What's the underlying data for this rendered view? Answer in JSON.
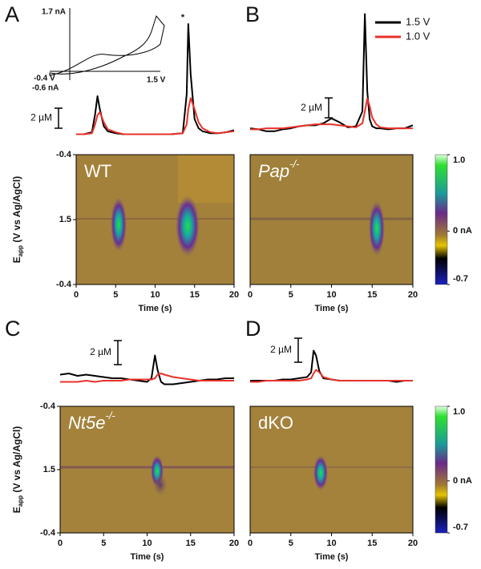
{
  "chart_data": [
    {
      "type": "line",
      "panel_label": "A",
      "annotation": "*",
      "genotype": {
        "text": "WT"
      },
      "inset": {
        "ymax_label": "1.7 nA",
        "xmin_label": "-0.4 V",
        "ymin_label": "-0.6 nA",
        "xmax_label": "1.5 V"
      },
      "x": [
        0,
        1,
        2,
        2.4,
        2.7,
        3.0,
        3.5,
        4,
        5,
        6,
        8,
        10,
        12,
        13.5,
        14,
        14.2,
        14.5,
        15,
        15.5,
        16,
        17,
        18,
        19,
        20
      ],
      "series": [
        {
          "color": "#000000",
          "values": [
            0,
            0,
            0.2,
            2,
            3.8,
            2.5,
            0.8,
            0.3,
            0.1,
            0,
            0,
            0,
            0,
            0.1,
            4,
            11,
            6,
            1.5,
            0.6,
            0.3,
            0.1,
            0.1,
            0.2,
            0.4
          ]
        },
        {
          "color": "#e8312a",
          "values": [
            0,
            0,
            0.1,
            1,
            1.9,
            2.2,
            1.2,
            0.5,
            0.2,
            0,
            0,
            0,
            0,
            0.1,
            1,
            2.5,
            3.6,
            2.5,
            1.2,
            0.6,
            0.2,
            0.1,
            0.2,
            0.3
          ]
        }
      ],
      "ylim": [
        -1,
        11
      ],
      "scalebar": {
        "value": 2,
        "label": "2 µM"
      },
      "xlim": [
        0,
        20
      ],
      "xticks": [
        0,
        5,
        10,
        15,
        20
      ],
      "xlabel": "Time (s)",
      "yticks": [
        -0.4,
        1.5,
        -0.4
      ],
      "ylabel": {
        "symbol": "E",
        "subscript": "app",
        "text": " (V vs Ag/AgCl)"
      }
    },
    {
      "type": "line",
      "panel_label": "B",
      "genotype": {
        "text": "Pap",
        "superscript": "-/-"
      },
      "x": [
        0,
        1,
        2,
        3,
        4,
        5,
        6,
        7,
        8,
        9,
        10,
        11,
        12,
        13,
        13.8,
        14.1,
        14.4,
        14.7,
        15,
        15.5,
        16,
        17,
        18,
        19,
        20
      ],
      "series": [
        {
          "name": "1.5 V",
          "color": "#000000",
          "values": [
            0.3,
            0.2,
            0,
            0,
            0.2,
            0.3,
            0.5,
            0.6,
            0.6,
            0.8,
            1.3,
            0.9,
            0.4,
            0.5,
            2,
            11.8,
            4,
            1.2,
            0.5,
            0.3,
            0.3,
            0.2,
            0.3,
            0.3,
            0.6
          ]
        },
        {
          "name": "1.0 V",
          "color": "#e8312a",
          "values": [
            0.2,
            0.2,
            0.3,
            0.3,
            0.3,
            0.4,
            0.5,
            0.6,
            0.7,
            0.7,
            0.7,
            0.6,
            0.5,
            0.4,
            0.8,
            2,
            3.3,
            2.5,
            1.4,
            0.7,
            0.4,
            0.3,
            0.3,
            0.3,
            0.3
          ]
        }
      ],
      "ylim": [
        -0.5,
        12
      ],
      "scalebar": {
        "value": 2,
        "label": "2 µM"
      },
      "xlim": [
        0,
        20
      ],
      "xticks": [
        0,
        5,
        10,
        15,
        20
      ],
      "xlabel": "Time (s)",
      "colorbar": {
        "clim": [
          -0.7,
          1.0
        ],
        "ticks": [
          {
            "value": 1.0,
            "label": "1.0"
          },
          {
            "value": 0,
            "label": "0 nA"
          },
          -0.7
        ]
      }
    },
    {
      "type": "line",
      "panel_label": "C",
      "genotype": {
        "text": "Nt5e",
        "superscript": "-/-"
      },
      "x": [
        0,
        1,
        2,
        3,
        4,
        5,
        6,
        7,
        8,
        9,
        10,
        10.5,
        10.9,
        11.2,
        11.6,
        12,
        13,
        14,
        15,
        16,
        17,
        18,
        19,
        20
      ],
      "series": [
        {
          "color": "#000000",
          "values": [
            0,
            0.1,
            -0.1,
            0,
            -0.1,
            -0.2,
            -0.3,
            -0.3,
            -0.4,
            -0.5,
            -0.6,
            -0.3,
            1.6,
            0.4,
            -0.6,
            -0.8,
            -0.8,
            -0.7,
            -0.6,
            -0.5,
            -0.4,
            -0.4,
            -0.3,
            -0.3
          ]
        },
        {
          "color": "#e8312a",
          "values": [
            -0.6,
            -0.6,
            -0.6,
            -0.5,
            -0.6,
            -0.5,
            -0.5,
            -0.5,
            -0.4,
            -0.4,
            -0.4,
            -0.4,
            -0.3,
            0,
            0.1,
            0,
            -0.2,
            -0.3,
            -0.4,
            -0.5,
            -0.5,
            -0.5,
            -0.5,
            -0.5
          ]
        }
      ],
      "ylim": [
        -1.5,
        3.5
      ],
      "scalebar": {
        "value": 2,
        "label": "2 µM"
      },
      "xlim": [
        0,
        20
      ],
      "xticks": [
        0,
        5,
        10,
        15,
        20
      ],
      "xlabel": "Time (s)",
      "yticks": [
        -0.4,
        1.5,
        -0.4
      ],
      "ylabel": {
        "symbol": "E",
        "subscript": "app",
        "text": " (V vs Ag/AgCl)"
      }
    },
    {
      "type": "line",
      "panel_label": "D",
      "genotype": {
        "text": "dKO"
      },
      "x": [
        0,
        1,
        2,
        3,
        4,
        5,
        6,
        7,
        7.5,
        7.8,
        8.1,
        8.5,
        9,
        10,
        11,
        12,
        13,
        14,
        15,
        16,
        17,
        18,
        19,
        20
      ],
      "series": [
        {
          "color": "#000000",
          "values": [
            -0.5,
            -0.5,
            -0.5,
            -0.5,
            -0.4,
            -0.4,
            -0.3,
            -0.2,
            0.2,
            2,
            1.6,
            0.3,
            -0.3,
            -0.4,
            -0.5,
            -0.5,
            -0.5,
            -0.5,
            -0.5,
            -0.5,
            -0.5,
            -0.6,
            -0.5,
            -0.5
          ]
        },
        {
          "color": "#e8312a",
          "values": [
            -0.6,
            -0.6,
            -0.5,
            -0.5,
            -0.5,
            -0.5,
            -0.5,
            -0.4,
            -0.3,
            0.1,
            0.4,
            0.2,
            -0.2,
            -0.4,
            -0.5,
            -0.5,
            -0.5,
            -0.5,
            -0.5,
            -0.5,
            -0.5,
            -0.5,
            -0.5,
            -0.5
          ]
        }
      ],
      "ylim": [
        -1.5,
        3.5
      ],
      "scalebar": {
        "value": 2,
        "label": "2 µM"
      },
      "xlim": [
        0,
        20
      ],
      "xticks": [
        0,
        5,
        10,
        15,
        20
      ],
      "xlabel": "Time (s)",
      "colorbar": {
        "clim": [
          -0.7,
          1.0
        ],
        "ticks": [
          {
            "value": 1.0,
            "label": "1.0"
          },
          {
            "value": 0,
            "label": "0 nA"
          },
          -0.7
        ]
      }
    }
  ]
}
